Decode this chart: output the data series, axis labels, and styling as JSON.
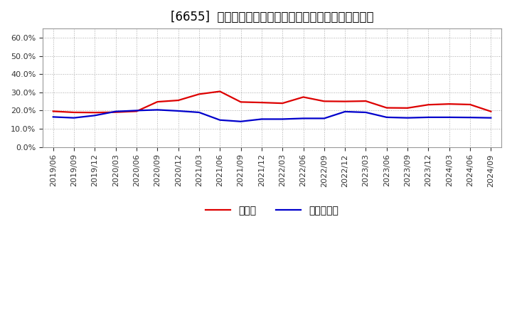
{
  "title": "[6655]  現預金、有利子負債の総資産に対する比率の推移",
  "xlabel_ticks": [
    "2019/06",
    "2019/09",
    "2019/12",
    "2020/03",
    "2020/06",
    "2020/09",
    "2020/12",
    "2021/03",
    "2021/06",
    "2021/09",
    "2021/12",
    "2022/03",
    "2022/06",
    "2022/09",
    "2022/12",
    "2023/03",
    "2023/06",
    "2023/09",
    "2023/12",
    "2024/03",
    "2024/06",
    "2024/09"
  ],
  "cash_values": [
    0.196,
    0.19,
    0.189,
    0.191,
    0.196,
    0.248,
    0.256,
    0.29,
    0.305,
    0.247,
    0.244,
    0.24,
    0.274,
    0.251,
    0.25,
    0.252,
    0.215,
    0.214,
    0.232,
    0.236,
    0.233,
    0.195
  ],
  "debt_values": [
    0.165,
    0.16,
    0.173,
    0.195,
    0.2,
    0.204,
    0.198,
    0.19,
    0.148,
    0.14,
    0.153,
    0.153,
    0.157,
    0.157,
    0.194,
    0.19,
    0.163,
    0.16,
    0.163,
    0.163,
    0.162,
    0.16
  ],
  "cash_color": "#dd0000",
  "debt_color": "#0000cc",
  "background_color": "#ffffff",
  "plot_bg_color": "#ffffff",
  "grid_color": "#aaaaaa",
  "ylim": [
    0.0,
    0.65
  ],
  "yticks": [
    0.0,
    0.1,
    0.2,
    0.3,
    0.4,
    0.5,
    0.6
  ],
  "legend_cash": "現預金",
  "legend_debt": "有利子負債",
  "title_fontsize": 12,
  "axis_fontsize": 8,
  "legend_fontsize": 10,
  "line_width": 1.6
}
